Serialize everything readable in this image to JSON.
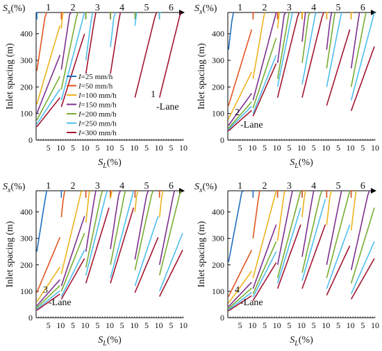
{
  "colors": [
    "#1f6fbf",
    "#e3541e",
    "#eeb21c",
    "#7e2f8e",
    "#77ac30",
    "#4dbeee",
    "#a2142f"
  ],
  "legend": {
    "prefix": "I",
    "entries": [
      "=25 mm/h",
      "=50 mm/h",
      "=100 mm/h",
      "=150 mm/h",
      "=200 mm/h",
      "=250 mm/h",
      "=300 mm/h"
    ]
  },
  "axis_text": {
    "ylabel": "Inlet spacing (m)",
    "xlabel_main": "S",
    "xlabel_sub": "L",
    "xlabel_unit": "(%)",
    "sx_main": "S",
    "sx_sub": "x",
    "sx_unit": "(%)"
  },
  "chart_data": [
    {
      "type": "line",
      "panel_label": [
        "1",
        "-Lane"
      ],
      "segments": [
        "1",
        "2",
        "3",
        "4",
        "5",
        "6"
      ],
      "x_ticks": [
        "5",
        "10",
        "5",
        "10",
        "5",
        "10",
        "5",
        "10",
        "5",
        "10",
        "5",
        "10"
      ],
      "x_range_each_segment": [
        0,
        10
      ],
      "ylim": [
        0,
        480
      ],
      "y_ticks": [
        0,
        100,
        200,
        300,
        400
      ],
      "legend_placement": "center",
      "series": [
        {
          "name": "I=25 mm/h",
          "segment_start_values": [
            480,
            480,
            480,
            480,
            480,
            480
          ]
        },
        {
          "name": "I=50 mm/h",
          "segment_start_values": [
            260,
            480,
            480,
            480,
            480,
            480
          ]
        },
        {
          "name": "I=100 mm/h",
          "segment_start_values": [
            135,
            420,
            480,
            480,
            480,
            480
          ]
        },
        {
          "name": "I=150 mm/h",
          "segment_start_values": [
            100,
            265,
            480,
            480,
            480,
            480
          ]
        },
        {
          "name": "I=200 mm/h",
          "segment_start_values": [
            75,
            190,
            480,
            480,
            480,
            480
          ]
        },
        {
          "name": "I=250 mm/h",
          "segment_start_values": [
            60,
            150,
            300,
            350,
            430,
            480
          ]
        },
        {
          "name": "I=300 mm/h",
          "segment_start_values": [
            50,
            125,
            250,
            250,
            160,
            160
          ]
        }
      ]
    },
    {
      "type": "line",
      "panel_label": [
        "2",
        "-Lane"
      ],
      "segments": [
        "1",
        "2",
        "3",
        "4",
        "5",
        "6"
      ],
      "x_ticks": [
        "5",
        "10",
        "5",
        "10",
        "5",
        "10",
        "5",
        "10",
        "5",
        "10",
        "5",
        "10"
      ],
      "x_range_each_segment": [
        0,
        10
      ],
      "ylim": [
        0,
        480
      ],
      "y_ticks": [
        0,
        100,
        200,
        300,
        400
      ],
      "series": [
        {
          "name": "I=25 mm/h",
          "segment_start_values": [
            340,
            480,
            480,
            480,
            480,
            480
          ]
        },
        {
          "name": "I=50 mm/h",
          "segment_start_values": [
            130,
            480,
            480,
            480,
            480,
            480
          ]
        },
        {
          "name": "I=100 mm/h",
          "segment_start_values": [
            80,
            230,
            420,
            480,
            480,
            480
          ]
        },
        {
          "name": "I=150 mm/h",
          "segment_start_values": [
            55,
            150,
            290,
            370,
            340,
            270
          ]
        },
        {
          "name": "I=200 mm/h",
          "segment_start_values": [
            45,
            120,
            230,
            290,
            270,
            200
          ]
        },
        {
          "name": "I=250 mm/h",
          "segment_start_values": [
            40,
            100,
            200,
            210,
            200,
            150
          ]
        },
        {
          "name": "I=300 mm/h",
          "segment_start_values": [
            35,
            90,
            160,
            160,
            130,
            110
          ]
        }
      ]
    },
    {
      "type": "line",
      "panel_label": [
        "3",
        "-Lane"
      ],
      "segments": [
        "1",
        "2",
        "3",
        "4",
        "5",
        "6"
      ],
      "x_ticks": [
        "5",
        "10",
        "5",
        "10",
        "5",
        "10",
        "5",
        "10",
        "5",
        "10",
        "5",
        "10"
      ],
      "x_range_each_segment": [
        0,
        10
      ],
      "ylim": [
        0,
        480
      ],
      "y_ticks": [
        0,
        100,
        200,
        300,
        400
      ],
      "series": [
        {
          "name": "I=25 mm/h",
          "segment_start_values": [
            250,
            480,
            480,
            480,
            480,
            480
          ]
        },
        {
          "name": "I=50 mm/h",
          "segment_start_values": [
            95,
            380,
            480,
            480,
            480,
            480
          ]
        },
        {
          "name": "I=100 mm/h",
          "segment_start_values": [
            60,
            165,
            360,
            450,
            400,
            380
          ]
        },
        {
          "name": "I=150 mm/h",
          "segment_start_values": [
            45,
            120,
            250,
            260,
            220,
            200
          ]
        },
        {
          "name": "I=200 mm/h",
          "segment_start_values": [
            38,
            100,
            190,
            200,
            180,
            160
          ]
        },
        {
          "name": "I=250 mm/h",
          "segment_start_values": [
            32,
            80,
            160,
            150,
            120,
            100
          ]
        },
        {
          "name": "I=300 mm/h",
          "segment_start_values": [
            28,
            70,
            130,
            130,
            95,
            80
          ]
        }
      ]
    },
    {
      "type": "line",
      "panel_label": [
        "4",
        "-Lane"
      ],
      "segments": [
        "1",
        "2",
        "3",
        "4",
        "5",
        "6"
      ],
      "x_ticks": [
        "5",
        "10",
        "5",
        "10",
        "5",
        "10",
        "5",
        "10",
        "5",
        "10",
        "5",
        "10"
      ],
      "x_range_each_segment": [
        0,
        10
      ],
      "ylim": [
        0,
        480
      ],
      "y_ticks": [
        0,
        100,
        200,
        300,
        400
      ],
      "series": [
        {
          "name": "I=25 mm/h",
          "segment_start_values": [
            210,
            480,
            480,
            480,
            480,
            480
          ]
        },
        {
          "name": "I=50 mm/h",
          "segment_start_values": [
            80,
            300,
            480,
            480,
            480,
            480
          ]
        },
        {
          "name": "I=100 mm/h",
          "segment_start_values": [
            55,
            150,
            290,
            380,
            350,
            330
          ]
        },
        {
          "name": "I=150 mm/h",
          "segment_start_values": [
            42,
            110,
            200,
            230,
            200,
            180
          ]
        },
        {
          "name": "I=200 mm/h",
          "segment_start_values": [
            35,
            90,
            150,
            170,
            150,
            130
          ]
        },
        {
          "name": "I=250 mm/h",
          "segment_start_values": [
            30,
            78,
            130,
            140,
            110,
            90
          ]
        },
        {
          "name": "I=300 mm/h",
          "segment_start_values": [
            26,
            65,
            110,
            110,
            85,
            70
          ]
        }
      ]
    }
  ]
}
